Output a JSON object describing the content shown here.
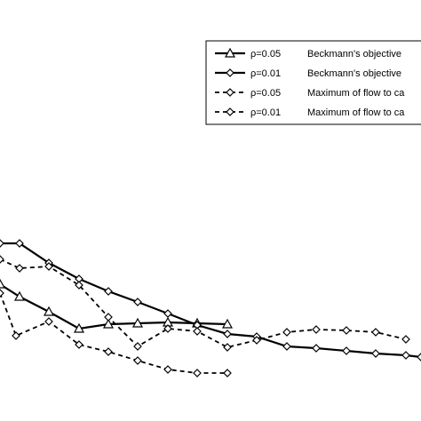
{
  "chart_data": {
    "type": "line",
    "title": "",
    "xlabel": "",
    "ylabel": "",
    "x_unit": "cropped horizontal position (arbitrary units, 0-474 visible window)",
    "y_unit": "cropped vertical value (arbitrary units, larger = higher on chart)",
    "legend_position": "top-right",
    "grid": false,
    "series": [
      {
        "name": "ρ=0.05",
        "name_description": "Beckmann's objective",
        "line_style": "solid",
        "marker": "triangle",
        "x": [
          0,
          22,
          55,
          89,
          122,
          155,
          189,
          222,
          256
        ],
        "y": [
          150,
          136,
          119,
          100,
          105,
          106,
          107,
          106,
          105
        ]
      },
      {
        "name": "ρ=0.01",
        "name_description": "Beckmann's objective",
        "line_style": "solid",
        "marker": "diamond",
        "x": [
          0,
          22,
          55,
          89,
          122,
          155,
          189,
          222,
          256,
          289,
          323,
          356,
          390,
          423,
          457,
          474
        ],
        "y": [
          196,
          196,
          174,
          156,
          142,
          130,
          117,
          104,
          94,
          91,
          80,
          78,
          75,
          72,
          70,
          68
        ]
      },
      {
        "name": "ρ=0.05",
        "name_description": "Maximum of flow to ca",
        "line_style": "dashed",
        "marker": "diamond",
        "x": [
          0,
          18,
          55,
          89,
          122,
          155,
          189,
          222,
          256
        ],
        "y": [
          140,
          92,
          108,
          82,
          74,
          64,
          54,
          50,
          50
        ]
      },
      {
        "name": "ρ=0.01",
        "name_description": "Maximum of flow to ca",
        "line_style": "dashed",
        "marker": "diamond",
        "x": [
          0,
          22,
          55,
          89,
          122,
          155,
          189,
          222,
          256,
          289,
          323,
          356,
          390,
          423,
          457
        ],
        "y": [
          178,
          168,
          170,
          149,
          113,
          80,
          100,
          97,
          79,
          87,
          96,
          99,
          98,
          96,
          88
        ]
      }
    ],
    "legend": [
      {
        "symbol_label": "ρ=0.05",
        "description": "Beckmann's objective"
      },
      {
        "symbol_label": "ρ=0.01",
        "description": "Beckmann's objective"
      },
      {
        "symbol_label": "ρ=0.05",
        "description": "Maximum of flow to ca"
      },
      {
        "symbol_label": "ρ=0.01",
        "description": "Maximum of flow to ca"
      }
    ]
  }
}
